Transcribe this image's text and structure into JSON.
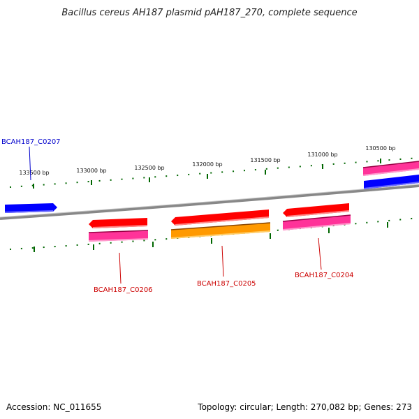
{
  "title": "Bacillus cereus AH187 plasmid pAH187_270, complete sequence",
  "footer": {
    "accession": "Accession: NC_011655",
    "summary": "Topology: circular; Length: 270,082 bp; Genes: 273"
  },
  "ticks": [
    "133500 bp",
    "133000 bp",
    "132500 bp",
    "132000 bp",
    "131500 bp",
    "131000 bp",
    "130500 bp"
  ],
  "genes": [
    {
      "label": "BCAH187_C0207",
      "color": "#0000cc"
    },
    {
      "label": "BCAH187_C0206",
      "color": "#cc0000"
    },
    {
      "label": "BCAH187_C0205",
      "color": "#cc0000"
    },
    {
      "label": "BCAH187_C0204",
      "color": "#cc0000"
    }
  ],
  "colors": {
    "forward_cds": "#0000ff",
    "reverse_cds": "#ff0000",
    "pink_track": "#ff3399",
    "orange_track": "#ff9900",
    "backbone": "#888888",
    "ticks": "#006600"
  }
}
